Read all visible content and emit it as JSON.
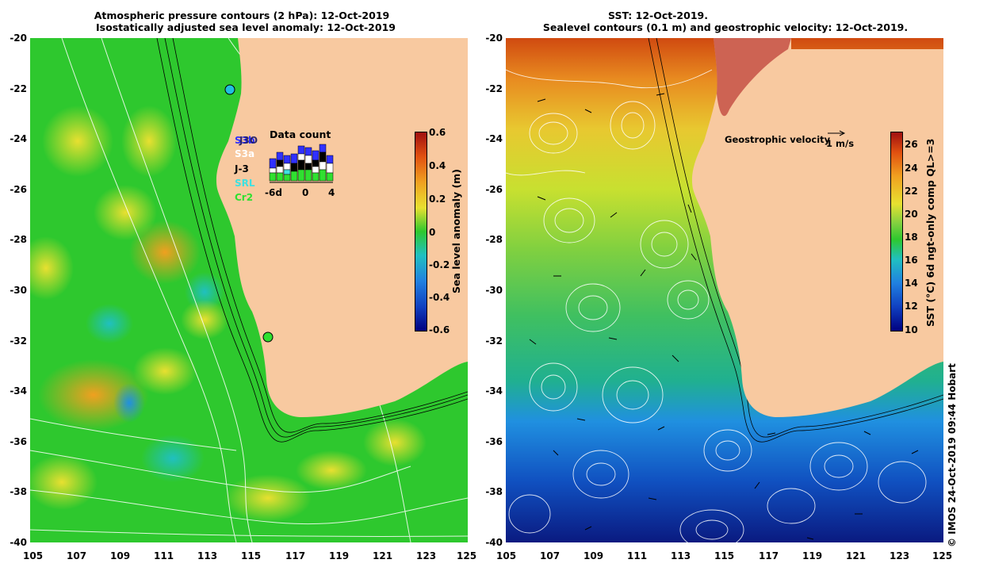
{
  "left_panel": {
    "title_line1": "Atmospheric pressure contours (2 hPa): 12-Oct-2019",
    "title_line2": "Isostatically adjusted sea level anomaly: 12-Oct-2019",
    "colorbar": {
      "label": "Sea level anomaly (m)",
      "ticks": [
        "0.6",
        "0.4",
        "0.2",
        "0",
        "-0.2",
        "-0.4",
        "-0.6"
      ],
      "range": [
        -0.6,
        0.6
      ]
    },
    "legend": {
      "satellites": [
        {
          "label": "S3b",
          "color": "#3030ff"
        },
        {
          "label": "J3O",
          "color": "#101060"
        },
        {
          "label": "S3a",
          "color": "#ffffff"
        },
        {
          "label": "J-3",
          "color": "#000000"
        },
        {
          "label": "SRL",
          "color": "#40e0e0"
        },
        {
          "label": "Cr2",
          "color": "#30e030"
        }
      ],
      "data_count_title": "Data count",
      "axis_labels": [
        "-6d",
        "0",
        "4"
      ]
    }
  },
  "right_panel": {
    "title_line1": "SST: 12-Oct-2019.",
    "title_line2": "Sealevel contours (0.1 m) and geostrophic velocity: 12-Oct-2019.",
    "velocity_label": "Geostrophic velocity",
    "velocity_scale": "1 m/s",
    "colorbar": {
      "label": "SST (°C) 6d ngt-only comp QL>=3",
      "ticks": [
        "26",
        "24",
        "22",
        "20",
        "18",
        "16",
        "14",
        "12",
        "10"
      ],
      "range": [
        10,
        27
      ]
    }
  },
  "axes": {
    "x_ticks": [
      "105",
      "107",
      "109",
      "111",
      "113",
      "115",
      "117",
      "119",
      "121",
      "123",
      "125"
    ],
    "y_ticks": [
      "-20",
      "-22",
      "-24",
      "-26",
      "-28",
      "-30",
      "-32",
      "-34",
      "-36",
      "-38",
      "-40"
    ]
  },
  "credit": "© IMOS 24-Oct-2019 09:44 Hobart",
  "colors": {
    "land": "#f8c9a0",
    "sla_green": "#2ec82e",
    "sst_warm": "#e05010",
    "sst_cool": "#2080e0"
  }
}
